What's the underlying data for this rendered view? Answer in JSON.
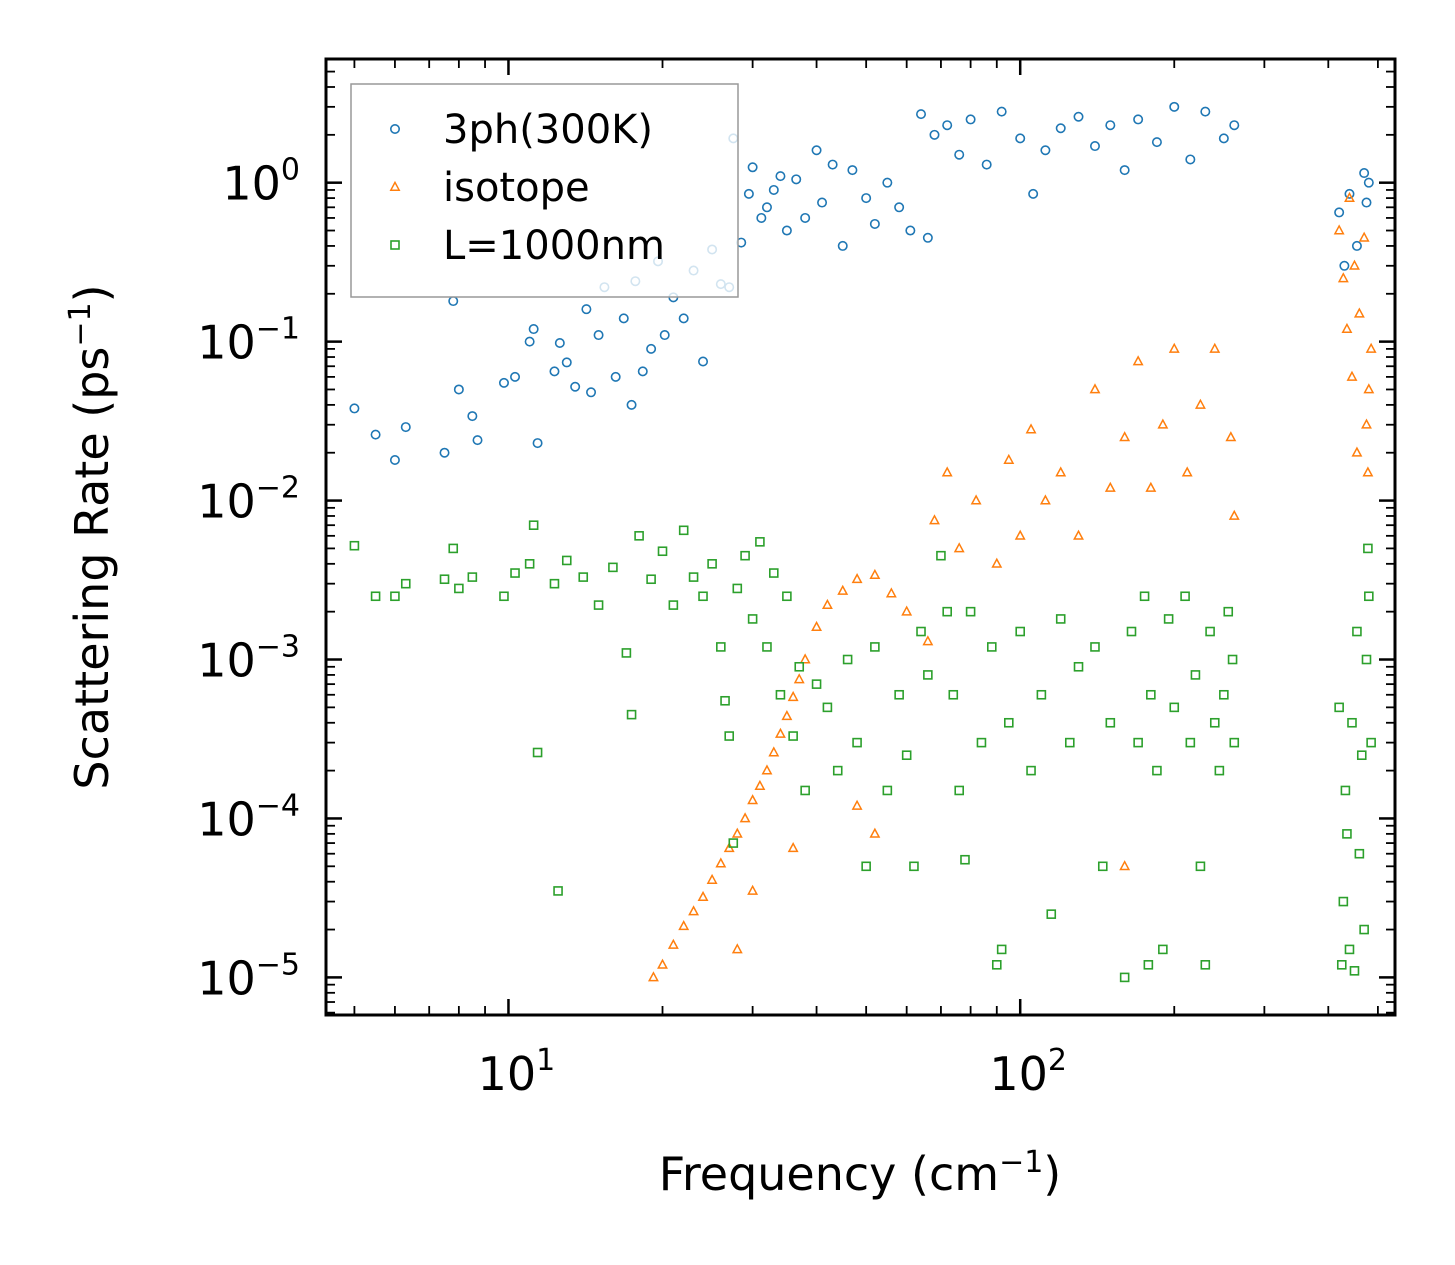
{
  "chart_data": {
    "type": "scatter",
    "title": "",
    "xlabel": "Frequency (cm",
    "xlabel_sup": "−1",
    "xlabel_end": ")",
    "ylabel": "Scattering Rate (ps",
    "ylabel_sup": "−1",
    "ylabel_end": ")",
    "xscale": "log",
    "yscale": "log",
    "xlim": [
      4.4,
      540
    ],
    "ylim": [
      5.8e-06,
      6.0
    ],
    "x_ticks": [
      {
        "value": 10,
        "base": "10",
        "exp": "1"
      },
      {
        "value": 100,
        "base": "10",
        "exp": "2"
      }
    ],
    "y_ticks": [
      {
        "value": 1,
        "base": "10",
        "exp": "0"
      },
      {
        "value": 0.1,
        "base": "10",
        "exp": "−1"
      },
      {
        "value": 0.01,
        "base": "10",
        "exp": "−2"
      },
      {
        "value": 0.001,
        "base": "10",
        "exp": "−3"
      },
      {
        "value": 0.0001,
        "base": "10",
        "exp": "−4"
      },
      {
        "value": 1e-05,
        "base": "10",
        "exp": "−5"
      }
    ],
    "legend_position": "top-left",
    "series": [
      {
        "name": "3ph(300K)",
        "marker": "circle",
        "color": "#1f77b4",
        "points": [
          [
            5,
            0.038
          ],
          [
            5.5,
            0.026
          ],
          [
            6,
            0.018
          ],
          [
            6.3,
            0.029
          ],
          [
            7.5,
            0.02
          ],
          [
            7.8,
            0.18
          ],
          [
            8,
            0.05
          ],
          [
            8.5,
            0.034
          ],
          [
            8.7,
            0.024
          ],
          [
            9.8,
            0.055
          ],
          [
            10.3,
            0.06
          ],
          [
            11,
            0.1
          ],
          [
            11.2,
            0.12
          ],
          [
            11.4,
            0.023
          ],
          [
            12.3,
            0.065
          ],
          [
            12.6,
            0.098
          ],
          [
            13,
            0.074
          ],
          [
            13.5,
            0.052
          ],
          [
            14.2,
            0.16
          ],
          [
            14.5,
            0.048
          ],
          [
            15,
            0.11
          ],
          [
            15.4,
            0.22
          ],
          [
            16.2,
            0.06
          ],
          [
            16.8,
            0.14
          ],
          [
            17.4,
            0.04
          ],
          [
            17.7,
            0.24
          ],
          [
            18.3,
            0.065
          ],
          [
            19,
            0.09
          ],
          [
            19.6,
            0.32
          ],
          [
            20.2,
            0.11
          ],
          [
            21,
            0.19
          ],
          [
            22,
            0.14
          ],
          [
            23,
            0.28
          ],
          [
            24,
            0.075
          ],
          [
            25,
            0.38
          ],
          [
            26,
            0.23
          ],
          [
            27,
            0.22
          ],
          [
            27.5,
            1.9
          ],
          [
            28.5,
            0.42
          ],
          [
            29.5,
            0.85
          ],
          [
            30,
            1.25
          ],
          [
            31.2,
            0.6
          ],
          [
            32,
            0.7
          ],
          [
            33,
            0.9
          ],
          [
            34,
            1.1
          ],
          [
            35,
            0.5
          ],
          [
            36.5,
            1.05
          ],
          [
            38,
            0.6
          ],
          [
            40,
            1.6
          ],
          [
            41,
            0.75
          ],
          [
            43,
            1.3
          ],
          [
            45,
            0.4
          ],
          [
            47,
            1.2
          ],
          [
            50,
            0.8
          ],
          [
            52,
            0.55
          ],
          [
            55,
            1.0
          ],
          [
            58,
            0.7
          ],
          [
            61,
            0.5
          ],
          [
            64,
            2.7
          ],
          [
            66,
            0.45
          ],
          [
            68,
            2.0
          ],
          [
            72,
            2.3
          ],
          [
            76,
            1.5
          ],
          [
            80,
            2.5
          ],
          [
            86,
            1.3
          ],
          [
            92,
            2.8
          ],
          [
            100,
            1.9
          ],
          [
            106,
            0.85
          ],
          [
            112,
            1.6
          ],
          [
            120,
            2.2
          ],
          [
            130,
            2.6
          ],
          [
            140,
            1.7
          ],
          [
            150,
            2.3
          ],
          [
            160,
            1.2
          ],
          [
            170,
            2.5
          ],
          [
            185,
            1.8
          ],
          [
            200,
            3.0
          ],
          [
            215,
            1.4
          ],
          [
            230,
            2.8
          ],
          [
            250,
            1.9
          ],
          [
            262,
            2.3
          ],
          [
            420,
            0.65
          ],
          [
            430,
            0.3
          ],
          [
            440,
            0.85
          ],
          [
            455,
            0.4
          ],
          [
            470,
            1.15
          ],
          [
            475,
            0.75
          ],
          [
            480,
            1.0
          ]
        ]
      },
      {
        "name": "isotope",
        "marker": "triangle",
        "color": "#ff7f0e",
        "points": [
          [
            19.2,
            1e-05
          ],
          [
            20,
            1.2e-05
          ],
          [
            21,
            1.6e-05
          ],
          [
            22,
            2.1e-05
          ],
          [
            23,
            2.6e-05
          ],
          [
            24,
            3.2e-05
          ],
          [
            25,
            4.1e-05
          ],
          [
            26,
            5.2e-05
          ],
          [
            27,
            6.5e-05
          ],
          [
            28,
            8e-05
          ],
          [
            29,
            0.0001
          ],
          [
            30,
            0.00013
          ],
          [
            31,
            0.00016
          ],
          [
            32,
            0.0002
          ],
          [
            33,
            0.00026
          ],
          [
            34,
            0.00034
          ],
          [
            35,
            0.00044
          ],
          [
            36,
            0.00058
          ],
          [
            37,
            0.00075
          ],
          [
            38,
            0.001
          ],
          [
            40,
            0.0016
          ],
          [
            42,
            0.0022
          ],
          [
            45,
            0.0027
          ],
          [
            48,
            0.0032
          ],
          [
            52,
            0.0034
          ],
          [
            56,
            0.0026
          ],
          [
            60,
            0.002
          ],
          [
            66,
            0.0013
          ],
          [
            68,
            0.0075
          ],
          [
            72,
            0.015
          ],
          [
            76,
            0.005
          ],
          [
            82,
            0.01
          ],
          [
            90,
            0.004
          ],
          [
            95,
            0.018
          ],
          [
            100,
            0.006
          ],
          [
            105,
            0.028
          ],
          [
            112,
            0.01
          ],
          [
            120,
            0.015
          ],
          [
            130,
            0.006
          ],
          [
            140,
            0.05
          ],
          [
            150,
            0.012
          ],
          [
            160,
            0.025
          ],
          [
            170,
            0.075
          ],
          [
            180,
            0.012
          ],
          [
            190,
            0.03
          ],
          [
            200,
            0.09
          ],
          [
            212,
            0.015
          ],
          [
            225,
            0.04
          ],
          [
            240,
            0.09
          ],
          [
            258,
            0.025
          ],
          [
            262,
            0.008
          ],
          [
            36,
            6.5e-05
          ],
          [
            48,
            0.00012
          ],
          [
            52,
            8e-05
          ],
          [
            30,
            3.5e-05
          ],
          [
            28,
            1.5e-05
          ],
          [
            160,
            5e-05
          ],
          [
            420,
            0.5
          ],
          [
            428,
            0.25
          ],
          [
            435,
            0.12
          ],
          [
            440,
            0.8
          ],
          [
            445,
            0.06
          ],
          [
            450,
            0.3
          ],
          [
            455,
            0.02
          ],
          [
            460,
            0.15
          ],
          [
            470,
            0.45
          ],
          [
            475,
            0.03
          ],
          [
            478,
            0.015
          ],
          [
            480,
            0.05
          ],
          [
            485,
            0.09
          ]
        ]
      },
      {
        "name": "L=1000nm",
        "marker": "square",
        "color": "#2ca02c",
        "points": [
          [
            5,
            0.0052
          ],
          [
            5.5,
            0.0025
          ],
          [
            6,
            0.0025
          ],
          [
            6.3,
            0.003
          ],
          [
            7.5,
            0.0032
          ],
          [
            7.8,
            0.005
          ],
          [
            8,
            0.0028
          ],
          [
            8.5,
            0.0033
          ],
          [
            9.8,
            0.0025
          ],
          [
            10.3,
            0.0035
          ],
          [
            11,
            0.004
          ],
          [
            11.2,
            0.007
          ],
          [
            11.4,
            0.00026
          ],
          [
            12.3,
            0.003
          ],
          [
            12.5,
            3.5e-05
          ],
          [
            13,
            0.0042
          ],
          [
            14,
            0.0033
          ],
          [
            15,
            0.0022
          ],
          [
            16,
            0.0038
          ],
          [
            17,
            0.0011
          ],
          [
            17.4,
            0.00045
          ],
          [
            18,
            0.006
          ],
          [
            19,
            0.0032
          ],
          [
            20,
            0.0048
          ],
          [
            21,
            0.0022
          ],
          [
            22,
            0.0065
          ],
          [
            23,
            0.0033
          ],
          [
            24,
            0.0025
          ],
          [
            25,
            0.004
          ],
          [
            26,
            0.0012
          ],
          [
            26.5,
            0.00055
          ],
          [
            27,
            0.00033
          ],
          [
            27.5,
            7e-05
          ],
          [
            28,
            0.0028
          ],
          [
            29,
            0.0045
          ],
          [
            30,
            0.0018
          ],
          [
            31,
            0.0055
          ],
          [
            32,
            0.0012
          ],
          [
            33,
            0.0035
          ],
          [
            34,
            0.0006
          ],
          [
            35,
            0.0025
          ],
          [
            36,
            0.00033
          ],
          [
            37,
            0.0009
          ],
          [
            38,
            0.00015
          ],
          [
            40,
            0.0007
          ],
          [
            42,
            0.0005
          ],
          [
            44,
            0.0002
          ],
          [
            46,
            0.001
          ],
          [
            48,
            0.0003
          ],
          [
            50,
            5e-05
          ],
          [
            52,
            0.0012
          ],
          [
            55,
            0.00015
          ],
          [
            58,
            0.0006
          ],
          [
            60,
            0.00025
          ],
          [
            62,
            5e-05
          ],
          [
            64,
            0.0015
          ],
          [
            66,
            0.0008
          ],
          [
            70,
            0.0045
          ],
          [
            72,
            0.002
          ],
          [
            74,
            0.0006
          ],
          [
            76,
            0.00015
          ],
          [
            78,
            5.5e-05
          ],
          [
            80,
            0.002
          ],
          [
            84,
            0.0003
          ],
          [
            88,
            0.0012
          ],
          [
            90,
            1.2e-05
          ],
          [
            92,
            1.5e-05
          ],
          [
            95,
            0.0004
          ],
          [
            100,
            0.0015
          ],
          [
            105,
            0.0002
          ],
          [
            110,
            0.0006
          ],
          [
            115,
            2.5e-05
          ],
          [
            120,
            0.0018
          ],
          [
            125,
            0.0003
          ],
          [
            130,
            0.0009
          ],
          [
            140,
            0.0012
          ],
          [
            145,
            5e-05
          ],
          [
            150,
            0.0004
          ],
          [
            160,
            1e-05
          ],
          [
            165,
            0.0015
          ],
          [
            170,
            0.0003
          ],
          [
            175,
            0.0025
          ],
          [
            178,
            1.2e-05
          ],
          [
            180,
            0.0006
          ],
          [
            185,
            0.0002
          ],
          [
            190,
            1.5e-05
          ],
          [
            195,
            0.0018
          ],
          [
            200,
            0.0005
          ],
          [
            210,
            0.0025
          ],
          [
            215,
            0.0003
          ],
          [
            220,
            0.0008
          ],
          [
            225,
            5e-05
          ],
          [
            230,
            1.2e-05
          ],
          [
            235,
            0.0015
          ],
          [
            240,
            0.0004
          ],
          [
            245,
            0.0002
          ],
          [
            250,
            0.0006
          ],
          [
            255,
            0.002
          ],
          [
            260,
            0.001
          ],
          [
            262,
            0.0003
          ],
          [
            420,
            0.0005
          ],
          [
            425,
            1.2e-05
          ],
          [
            428,
            3e-05
          ],
          [
            432,
            0.00015
          ],
          [
            435,
            8e-05
          ],
          [
            440,
            1.5e-05
          ],
          [
            445,
            0.0004
          ],
          [
            450,
            1.1e-05
          ],
          [
            455,
            0.0015
          ],
          [
            460,
            6e-05
          ],
          [
            465,
            0.00025
          ],
          [
            470,
            2e-05
          ],
          [
            475,
            0.001
          ],
          [
            478,
            0.005
          ],
          [
            480,
            0.0025
          ],
          [
            485,
            0.0003
          ]
        ]
      }
    ]
  }
}
